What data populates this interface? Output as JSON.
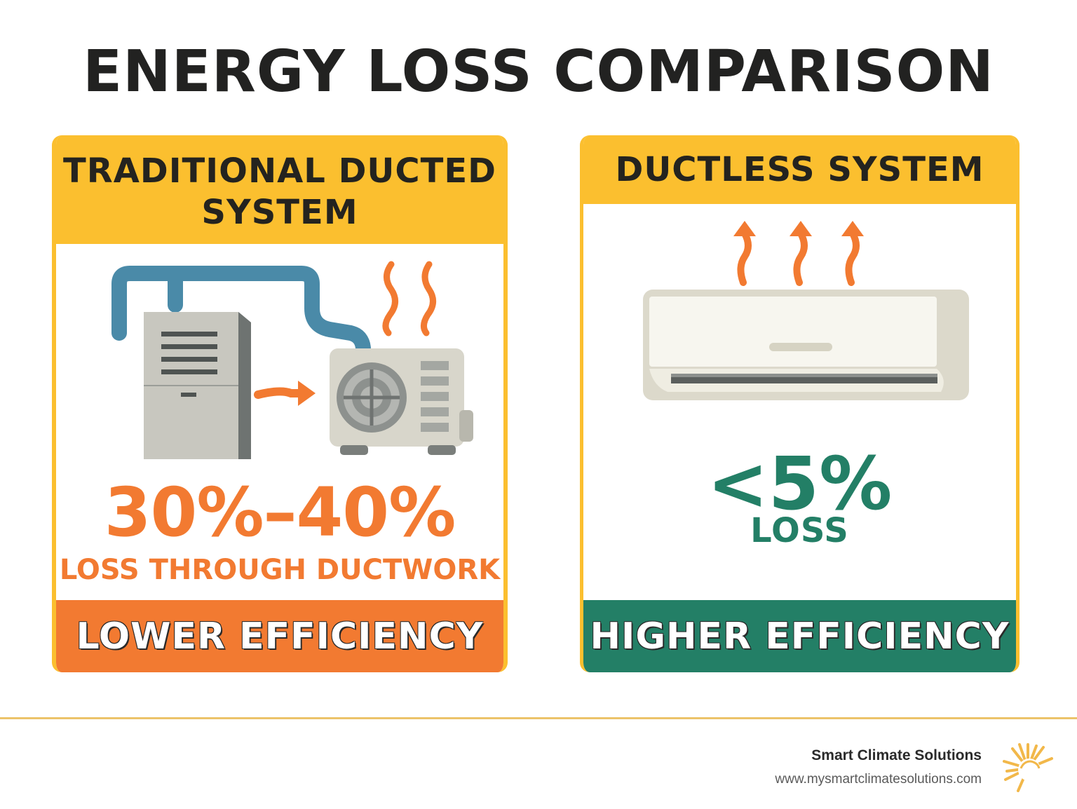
{
  "title": "ENERGY LOSS COMPARISON",
  "left_panel": {
    "heading_line1": "TRADITIONAL DUCTED",
    "heading_line2": "SYSTEM",
    "stat": "30%–40%",
    "stat_caption": "LOSS THROUGH DUCTWORK",
    "footer": "LOWER EFFICIENCY",
    "illustration": "furnace-and-outdoor-condenser-with-duct-and-heat-waves"
  },
  "right_panel": {
    "heading": "DUCTLESS SYSTEM",
    "stat": "<5%",
    "stat_caption": "LOSS",
    "footer": "HIGHER EFFICIENCY",
    "illustration": "wall-mounted-mini-split-with-rising-heat-arrows"
  },
  "brand": {
    "name": "Smart Climate Solutions",
    "url": "www.mysmartclimatesolutions.com",
    "logo_icon": "sun-icon"
  },
  "colors": {
    "yellow": "#fbbf2f",
    "orange": "#f27a31",
    "green": "#237f66",
    "duct_blue": "#4a8aa8",
    "dark_text": "#222221"
  }
}
